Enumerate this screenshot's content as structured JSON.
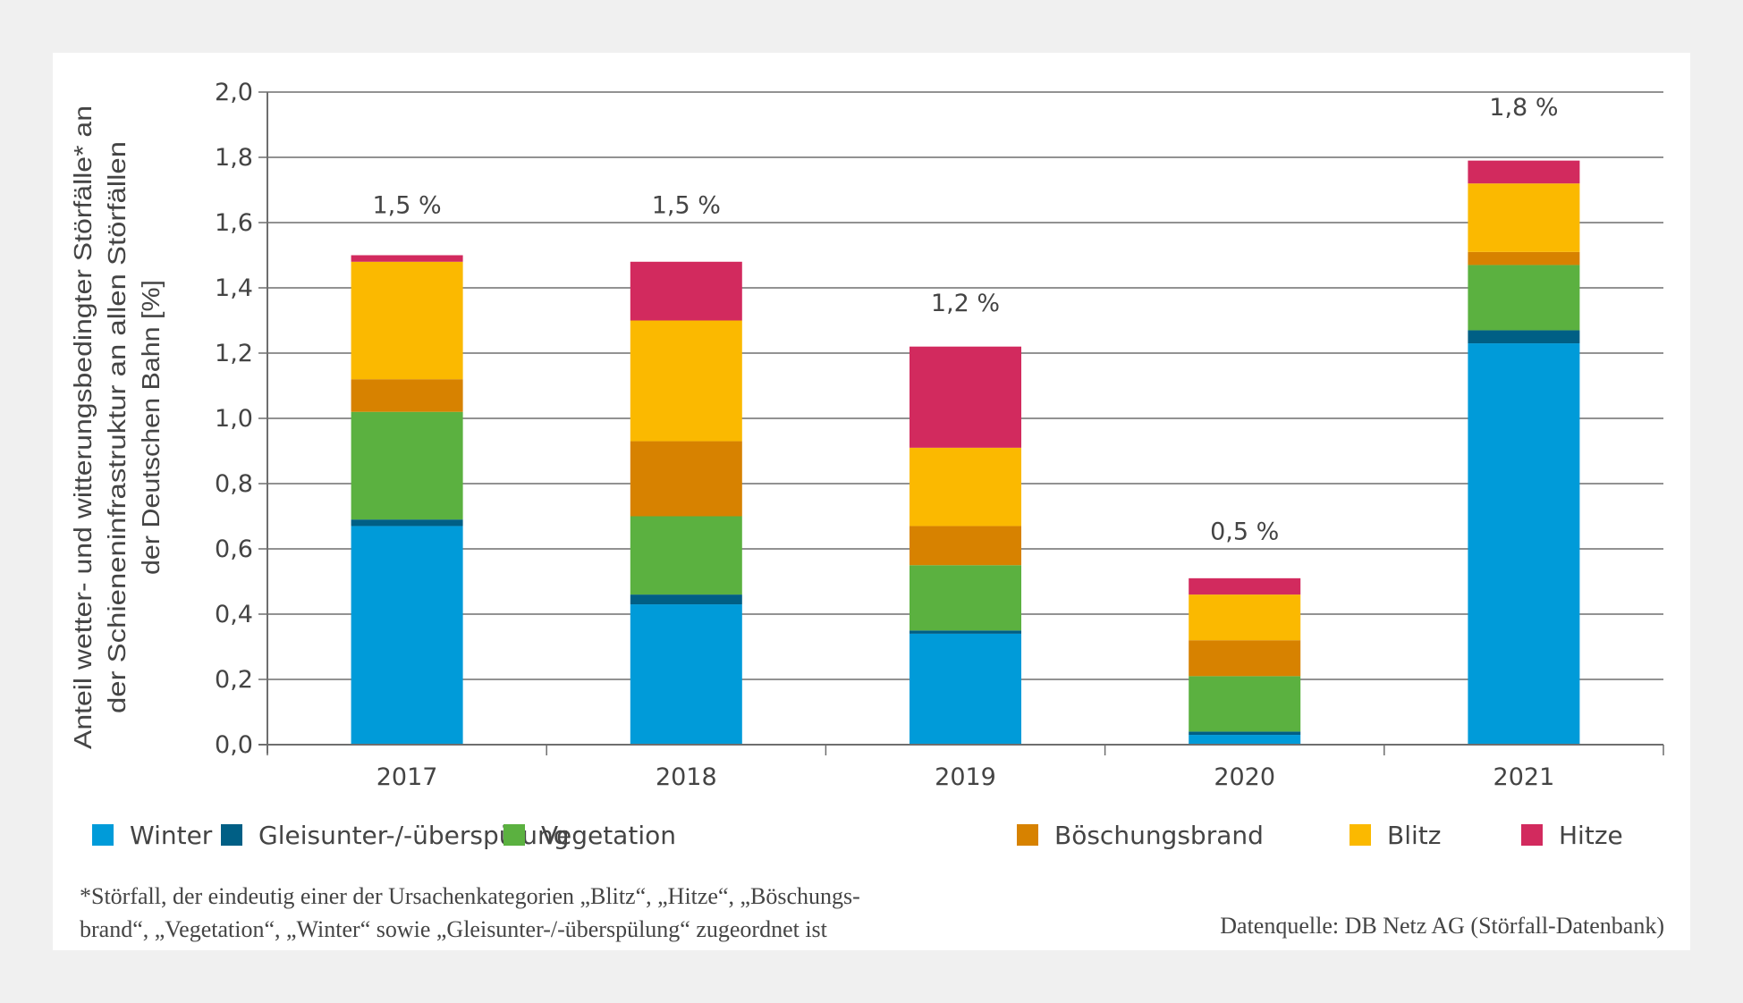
{
  "chart_data": {
    "type": "bar",
    "stacked": true,
    "title": "",
    "xlabel": "",
    "ylabel": "Anteil wetter- und witterungsbedingter Störfälle* an der Schieneninfrastruktur an allen Störfällen der Deutschen Bahn [%]",
    "ylabel_lines": [
      "Anteil wetter- und witterungsbedingter Störfälle* an",
      "der Schieneninfrastruktur an allen Störfällen",
      "der Deutschen Bahn [%]"
    ],
    "ylim": [
      0,
      2.0
    ],
    "yticks": [
      0,
      0.2,
      0.4,
      0.6,
      0.8,
      1.0,
      1.2,
      1.4,
      1.6,
      1.8,
      2.0
    ],
    "ytick_labels": [
      "0,0",
      "0,2",
      "0,4",
      "0,6",
      "0,8",
      "1,0",
      "1,2",
      "1,4",
      "1,6",
      "1,8",
      "2,0"
    ],
    "grid": true,
    "legend_position": "bottom",
    "categories": [
      "2017",
      "2018",
      "2019",
      "2020",
      "2021"
    ],
    "totals": [
      1.5,
      1.5,
      1.2,
      0.5,
      1.8
    ],
    "total_labels": [
      "1,5 %",
      "1,5 %",
      "1,2 %",
      "0,5 %",
      "1,8 %"
    ],
    "series": [
      {
        "name": "Winter",
        "color": "#009bd9",
        "values": [
          0.67,
          0.43,
          0.34,
          0.03,
          1.23
        ]
      },
      {
        "name": "Gleisunter-/-überspülung",
        "color": "#005f85",
        "values": [
          0.02,
          0.03,
          0.01,
          0.01,
          0.04
        ]
      },
      {
        "name": "Vegetation",
        "color": "#5bb140",
        "values": [
          0.33,
          0.24,
          0.2,
          0.17,
          0.2
        ]
      },
      {
        "name": "Böschungsbrand",
        "color": "#d78200",
        "values": [
          0.1,
          0.23,
          0.12,
          0.11,
          0.04
        ]
      },
      {
        "name": "Blitz",
        "color": "#fbb900",
        "values": [
          0.36,
          0.37,
          0.24,
          0.14,
          0.21
        ]
      },
      {
        "name": "Hitze",
        "color": "#d22a5e",
        "values": [
          0.02,
          0.18,
          0.31,
          0.05,
          0.07
        ]
      }
    ]
  },
  "footnote": {
    "line1": "*Störfall, der eindeutig einer der Ursachenkategorien „Blitz“, „Hitze“, „Böschungs-",
    "line2": "brand“, „Vegetation“, „Winter“ sowie „Gleisunter-/-überspülung“ zugeordnet ist"
  },
  "source": "Datenquelle: DB Netz AG  (Störfall-Datenbank)"
}
